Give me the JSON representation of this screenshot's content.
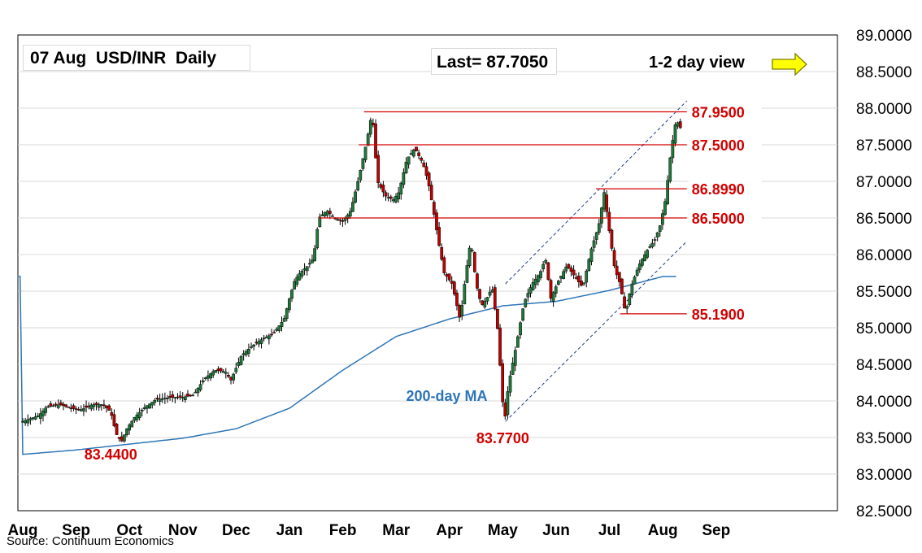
{
  "header": {
    "title": "07 Aug  USD/INR  Daily",
    "last": "Last= 87.7050",
    "view": "1-2 day view",
    "view_icon": "right-arrow-icon",
    "view_icon_color": "#ffff00"
  },
  "source": "Source: Continuum Economics",
  "colors": {
    "up": "#1f7a3a",
    "down": "#c00000",
    "ma": "#2e75b6",
    "level": "#d40000",
    "channel": "#1f3c88",
    "grid": "#d9d9d9"
  },
  "chart_data": {
    "type": "candlestick",
    "ylim": [
      82.5,
      89.0
    ],
    "yticks": [
      "89.0000",
      "88.5000",
      "88.0000",
      "87.5000",
      "87.0000",
      "86.5000",
      "86.0000",
      "85.5000",
      "85.0000",
      "84.5000",
      "84.0000",
      "83.5000",
      "83.0000",
      "82.5000"
    ],
    "ytick_values": [
      89.0,
      88.5,
      88.0,
      87.5,
      87.0,
      86.5,
      86.0,
      85.5,
      85.0,
      84.5,
      84.0,
      83.5,
      83.0,
      82.5
    ],
    "months": [
      "Aug",
      "Sep",
      "Oct",
      "Nov",
      "Dec",
      "Jan",
      "Feb",
      "Mar",
      "Apr",
      "May",
      "Jun",
      "Jul",
      "Aug",
      "Sep"
    ],
    "month_index": [
      0,
      1,
      2,
      3,
      4,
      5,
      6,
      7,
      8,
      9,
      10,
      11,
      12,
      13
    ],
    "series_path": [
      [
        0.0,
        83.72
      ],
      [
        0.3,
        83.8
      ],
      [
        0.45,
        83.92
      ],
      [
        0.7,
        83.95
      ],
      [
        0.9,
        83.9
      ],
      [
        1.1,
        83.88
      ],
      [
        1.3,
        83.95
      ],
      [
        1.5,
        83.95
      ],
      [
        1.65,
        83.85
      ],
      [
        1.75,
        83.55
      ],
      [
        1.85,
        83.44
      ],
      [
        1.95,
        83.62
      ],
      [
        2.1,
        83.78
      ],
      [
        2.3,
        83.92
      ],
      [
        2.5,
        84.02
      ],
      [
        2.8,
        84.05
      ],
      [
        3.0,
        84.05
      ],
      [
        3.2,
        84.08
      ],
      [
        3.4,
        84.3
      ],
      [
        3.6,
        84.42
      ],
      [
        3.8,
        84.4
      ],
      [
        3.9,
        84.28
      ],
      [
        4.1,
        84.62
      ],
      [
        4.3,
        84.75
      ],
      [
        4.5,
        84.85
      ],
      [
        4.7,
        84.92
      ],
      [
        4.9,
        85.12
      ],
      [
        5.0,
        85.4
      ],
      [
        5.1,
        85.65
      ],
      [
        5.2,
        85.75
      ],
      [
        5.35,
        85.85
      ],
      [
        5.45,
        85.95
      ],
      [
        5.55,
        86.5
      ],
      [
        5.7,
        86.6
      ],
      [
        5.85,
        86.5
      ],
      [
        6.0,
        86.45
      ],
      [
        6.15,
        86.6
      ],
      [
        6.3,
        87.05
      ],
      [
        6.45,
        87.55
      ],
      [
        6.55,
        87.95
      ],
      [
        6.65,
        87.0
      ],
      [
        6.8,
        86.8
      ],
      [
        6.95,
        86.75
      ],
      [
        7.05,
        86.85
      ],
      [
        7.2,
        87.3
      ],
      [
        7.35,
        87.45
      ],
      [
        7.5,
        87.25
      ],
      [
        7.6,
        87.0
      ],
      [
        7.7,
        86.6
      ],
      [
        7.8,
        86.15
      ],
      [
        7.9,
        85.75
      ],
      [
        8.05,
        85.6
      ],
      [
        8.2,
        85.1
      ],
      [
        8.3,
        85.7
      ],
      [
        8.4,
        86.2
      ],
      [
        8.5,
        85.6
      ],
      [
        8.6,
        85.3
      ],
      [
        8.7,
        85.4
      ],
      [
        8.8,
        85.55
      ],
      [
        8.9,
        85.0
      ],
      [
        9.0,
        83.95
      ],
      [
        9.05,
        83.77
      ],
      [
        9.1,
        84.2
      ],
      [
        9.25,
        84.75
      ],
      [
        9.4,
        85.35
      ],
      [
        9.55,
        85.6
      ],
      [
        9.7,
        85.75
      ],
      [
        9.8,
        85.95
      ],
      [
        9.9,
        85.4
      ],
      [
        10.05,
        85.65
      ],
      [
        10.2,
        85.85
      ],
      [
        10.35,
        85.7
      ],
      [
        10.5,
        85.55
      ],
      [
        10.65,
        86.05
      ],
      [
        10.8,
        86.4
      ],
      [
        10.9,
        86.85
      ],
      [
        11.0,
        86.3
      ],
      [
        11.1,
        85.8
      ],
      [
        11.2,
        85.6
      ],
      [
        11.3,
        85.19
      ],
      [
        11.4,
        85.55
      ],
      [
        11.55,
        85.85
      ],
      [
        11.7,
        86.05
      ],
      [
        11.85,
        86.2
      ],
      [
        11.95,
        86.4
      ],
      [
        12.05,
        86.75
      ],
      [
        12.15,
        87.4
      ],
      [
        12.25,
        87.85
      ],
      [
        12.35,
        87.7
      ]
    ],
    "moving_average": {
      "name": "200-day MA",
      "points": [
        [
          0.0,
          83.27
        ],
        [
          1.0,
          83.33
        ],
        [
          2.0,
          83.41
        ],
        [
          3.0,
          83.49
        ],
        [
          4.0,
          83.62
        ],
        [
          5.0,
          83.9
        ],
        [
          6.0,
          84.42
        ],
        [
          7.0,
          84.88
        ],
        [
          8.0,
          85.12
        ],
        [
          9.0,
          85.3
        ],
        [
          10.0,
          85.36
        ],
        [
          11.0,
          85.51
        ],
        [
          12.0,
          85.7
        ]
      ]
    },
    "levels": [
      {
        "value": 87.95,
        "label": "87.9500",
        "from": 6.4,
        "to": 12.45
      },
      {
        "value": 87.5,
        "label": "87.5000",
        "from": 6.3,
        "to": 12.45
      },
      {
        "value": 86.899,
        "label": "86.8990",
        "from": 10.75,
        "to": 12.45
      },
      {
        "value": 86.5,
        "label": "86.5000",
        "from": 5.55,
        "to": 12.45
      },
      {
        "value": 85.19,
        "label": "85.1900",
        "from": 11.2,
        "to": 12.45
      }
    ],
    "channel": [
      {
        "x1": 9.05,
        "y1": 85.6,
        "x2": 12.45,
        "y2": 88.1
      },
      {
        "x1": 9.05,
        "y1": 83.72,
        "x2": 12.45,
        "y2": 86.18
      }
    ],
    "annotations": [
      {
        "text": "83.4400",
        "x": 1.65,
        "y": 83.28
      },
      {
        "text": "83.7700",
        "x": 9.0,
        "y": 83.5
      },
      {
        "text": "200-day MA",
        "x": 7.95,
        "y": 84.08
      }
    ]
  }
}
